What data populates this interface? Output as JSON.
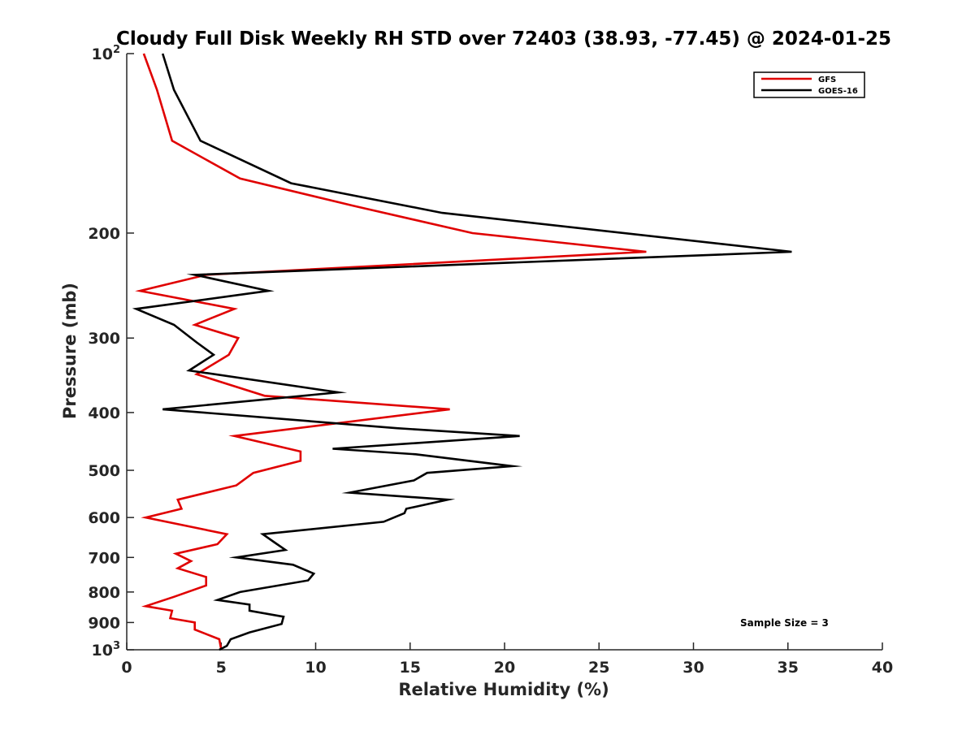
{
  "chart_data": {
    "type": "line",
    "title": "Cloudy Full Disk Weekly RH STD over 72403 (38.93, -77.45) @ 2024-01-25",
    "xlabel": "Relative Humidity (%)",
    "ylabel": "Pressure (mb)",
    "xlim": [
      0,
      40
    ],
    "ylim": [
      100,
      1000
    ],
    "y_scale": "log",
    "y_reversed": true,
    "x_ticks": [
      0,
      5,
      10,
      15,
      20,
      25,
      30,
      35,
      40
    ],
    "x_tick_labels": [
      "0",
      "5",
      "10",
      "15",
      "20",
      "25",
      "30",
      "35",
      "40"
    ],
    "y_ticks": [
      100,
      200,
      300,
      400,
      500,
      600,
      700,
      800,
      900,
      1000
    ],
    "y_tick_labels": [
      {
        "base": "10",
        "sup": "2"
      },
      {
        "base": "200",
        "sup": ""
      },
      {
        "base": "300",
        "sup": ""
      },
      {
        "base": "400",
        "sup": ""
      },
      {
        "base": "500",
        "sup": ""
      },
      {
        "base": "600",
        "sup": ""
      },
      {
        "base": "700",
        "sup": ""
      },
      {
        "base": "800",
        "sup": ""
      },
      {
        "base": "900",
        "sup": ""
      },
      {
        "base": "10",
        "sup": "3"
      }
    ],
    "grid": false,
    "legend_position": "top-right",
    "annotation": "Sample Size = 3",
    "series": [
      {
        "name": "GFS",
        "color": "#e00000",
        "points": [
          [
            0.9,
            100
          ],
          [
            1.6,
            115
          ],
          [
            2.4,
            140
          ],
          [
            6.0,
            162
          ],
          [
            12.0,
            180
          ],
          [
            18.3,
            200
          ],
          [
            27.5,
            215
          ],
          [
            4.2,
            235
          ],
          [
            0.7,
            250
          ],
          [
            5.7,
            268
          ],
          [
            3.6,
            285
          ],
          [
            5.9,
            300
          ],
          [
            5.4,
            320
          ],
          [
            3.7,
            345
          ],
          [
            7.3,
            375
          ],
          [
            17.1,
            395
          ],
          [
            5.7,
            438
          ],
          [
            9.2,
            465
          ],
          [
            9.2,
            482
          ],
          [
            6.7,
            505
          ],
          [
            5.8,
            530
          ],
          [
            2.7,
            560
          ],
          [
            2.9,
            580
          ],
          [
            1.0,
            600
          ],
          [
            5.3,
            640
          ],
          [
            4.8,
            665
          ],
          [
            2.6,
            690
          ],
          [
            3.4,
            710
          ],
          [
            2.7,
            730
          ],
          [
            4.2,
            755
          ],
          [
            4.2,
            780
          ],
          [
            2.5,
            815
          ],
          [
            1.0,
            845
          ],
          [
            2.4,
            860
          ],
          [
            2.3,
            885
          ],
          [
            3.6,
            900
          ],
          [
            3.6,
            925
          ],
          [
            4.9,
            960
          ],
          [
            5.0,
            1000
          ]
        ]
      },
      {
        "name": "GOES-16",
        "color": "#000000",
        "points": [
          [
            1.9,
            100
          ],
          [
            2.5,
            115
          ],
          [
            3.9,
            140
          ],
          [
            8.7,
            165
          ],
          [
            16.7,
            185
          ],
          [
            35.2,
            215
          ],
          [
            3.6,
            235
          ],
          [
            7.5,
            250
          ],
          [
            0.5,
            268
          ],
          [
            2.5,
            285
          ],
          [
            3.7,
            305
          ],
          [
            4.6,
            320
          ],
          [
            3.3,
            340
          ],
          [
            11.2,
            370
          ],
          [
            1.9,
            395
          ],
          [
            14.3,
            425
          ],
          [
            20.8,
            438
          ],
          [
            10.9,
            460
          ],
          [
            15.3,
            470
          ],
          [
            20.4,
            492
          ],
          [
            15.9,
            505
          ],
          [
            15.2,
            520
          ],
          [
            11.8,
            545
          ],
          [
            17.0,
            560
          ],
          [
            14.8,
            580
          ],
          [
            14.7,
            590
          ],
          [
            13.6,
            610
          ],
          [
            7.2,
            640
          ],
          [
            7.8,
            660
          ],
          [
            8.4,
            680
          ],
          [
            5.8,
            700
          ],
          [
            8.8,
            720
          ],
          [
            9.9,
            745
          ],
          [
            9.6,
            765
          ],
          [
            6.0,
            800
          ],
          [
            4.8,
            825
          ],
          [
            6.5,
            840
          ],
          [
            6.5,
            860
          ],
          [
            8.3,
            880
          ],
          [
            8.2,
            905
          ],
          [
            6.5,
            935
          ],
          [
            5.5,
            960
          ],
          [
            5.3,
            985
          ],
          [
            4.9,
            1000
          ]
        ]
      }
    ]
  }
}
